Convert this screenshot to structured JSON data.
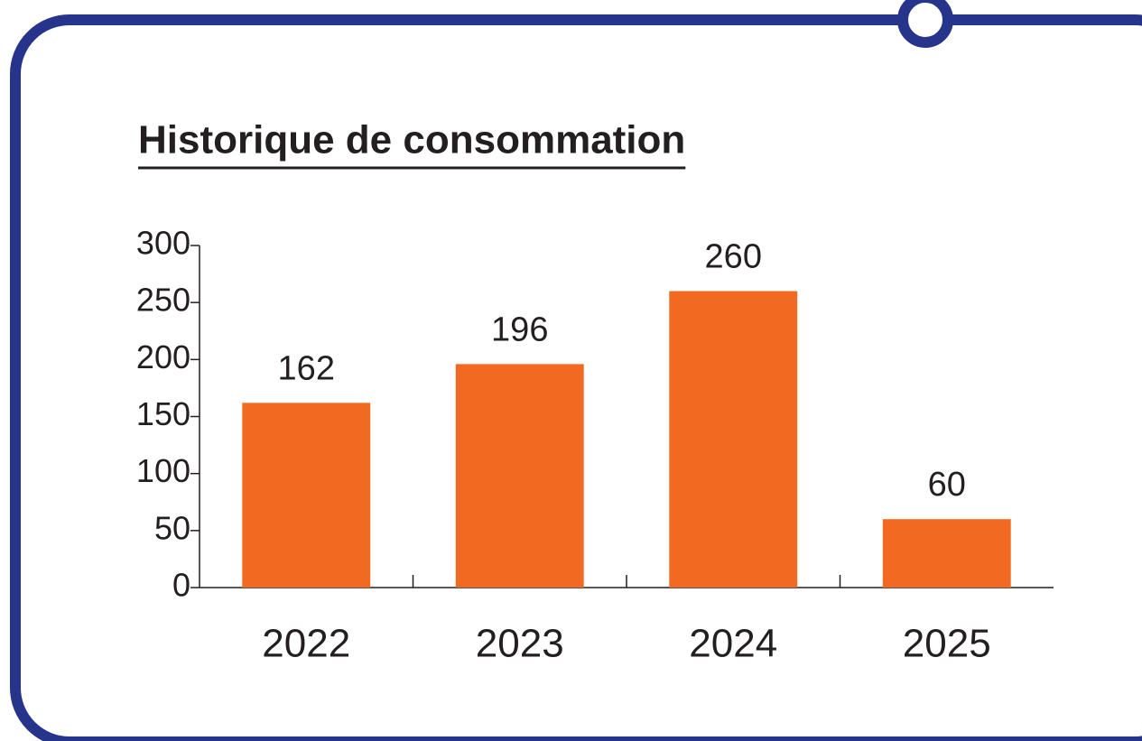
{
  "chart_data": {
    "type": "bar",
    "title": "Historique de consommation",
    "categories": [
      "2022",
      "2023",
      "2024",
      "2025"
    ],
    "values": [
      162,
      196,
      260,
      60
    ],
    "color": "#f26a22",
    "ylim": [
      0,
      300
    ],
    "yticks": [
      0,
      50,
      100,
      150,
      200,
      250,
      300
    ],
    "grid": false
  }
}
